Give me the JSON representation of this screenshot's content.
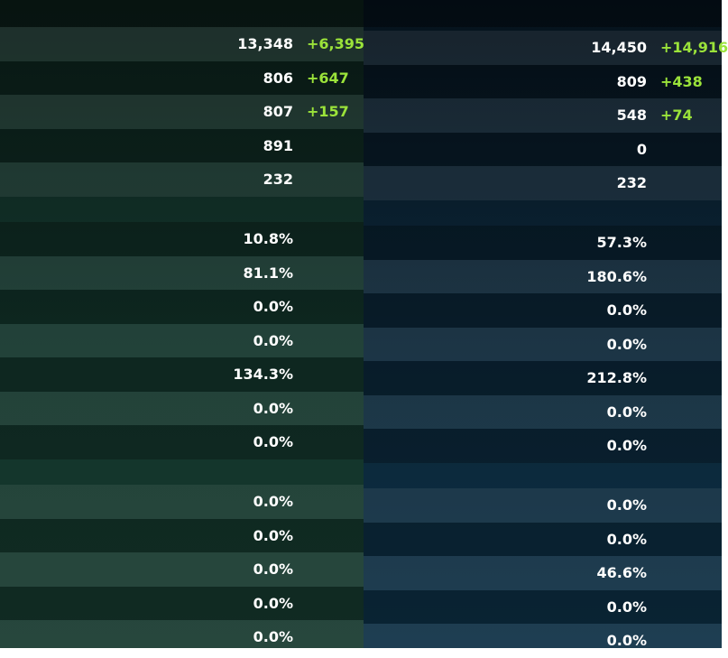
{
  "left": {
    "groups": [
      [
        {
          "value": "13,348",
          "bonus": "+6,395"
        },
        {
          "value": "806",
          "bonus": "+647"
        },
        {
          "value": "807",
          "bonus": "+157"
        },
        {
          "value": "891"
        },
        {
          "value": "232"
        }
      ],
      [
        {
          "value": "10.8%"
        },
        {
          "value": "81.1%"
        },
        {
          "value": "0.0%"
        },
        {
          "value": "0.0%"
        },
        {
          "value": "134.3%"
        },
        {
          "value": "0.0%"
        },
        {
          "value": "0.0%"
        }
      ],
      [
        {
          "value": "0.0%"
        },
        {
          "value": "0.0%"
        },
        {
          "value": "0.0%"
        },
        {
          "value": "0.0%"
        },
        {
          "value": "0.0%"
        }
      ]
    ]
  },
  "right": {
    "groups": [
      [
        {
          "value": "14,450",
          "bonus": "+14,916"
        },
        {
          "value": "809",
          "bonus": "+438"
        },
        {
          "value": "548",
          "bonus": "+74"
        },
        {
          "value": "0"
        },
        {
          "value": "232"
        }
      ],
      [
        {
          "value": "57.3%"
        },
        {
          "value": "180.6%"
        },
        {
          "value": "0.0%"
        },
        {
          "value": "0.0%"
        },
        {
          "value": "212.8%"
        },
        {
          "value": "0.0%"
        },
        {
          "value": "0.0%"
        }
      ],
      [
        {
          "value": "0.0%"
        },
        {
          "value": "0.0%"
        },
        {
          "value": "46.6%"
        },
        {
          "value": "0.0%"
        },
        {
          "value": "0.0%"
        }
      ]
    ]
  }
}
